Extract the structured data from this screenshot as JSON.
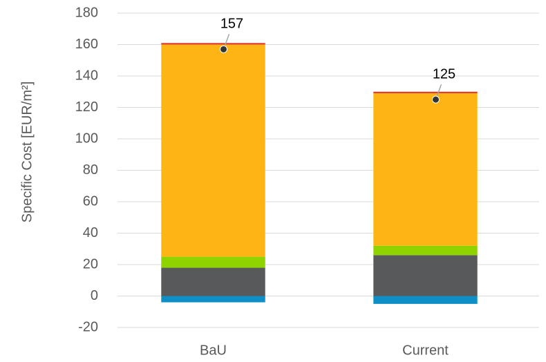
{
  "chart_data": {
    "type": "stacked_bar",
    "y_label": "Specific Cost [EUR/m²]",
    "categories": [
      "BaU",
      "Current"
    ],
    "series": [
      {
        "color": "#0e8fc6",
        "values": [
          -4,
          -5
        ]
      },
      {
        "color": "#58595b",
        "values": [
          18,
          26
        ]
      },
      {
        "color": "#8fd400",
        "values": [
          7,
          6
        ]
      },
      {
        "color": "#fdb515",
        "values": [
          135,
          97
        ]
      },
      {
        "color": "#e03c31",
        "values": [
          1,
          1
        ]
      }
    ],
    "totals": {
      "color": "#333333",
      "values": [
        157,
        125
      ]
    },
    "ylim": [
      -20,
      180
    ],
    "yticks": [
      -20,
      0,
      20,
      40,
      60,
      80,
      100,
      120,
      140,
      160,
      180
    ],
    "grid": true
  }
}
